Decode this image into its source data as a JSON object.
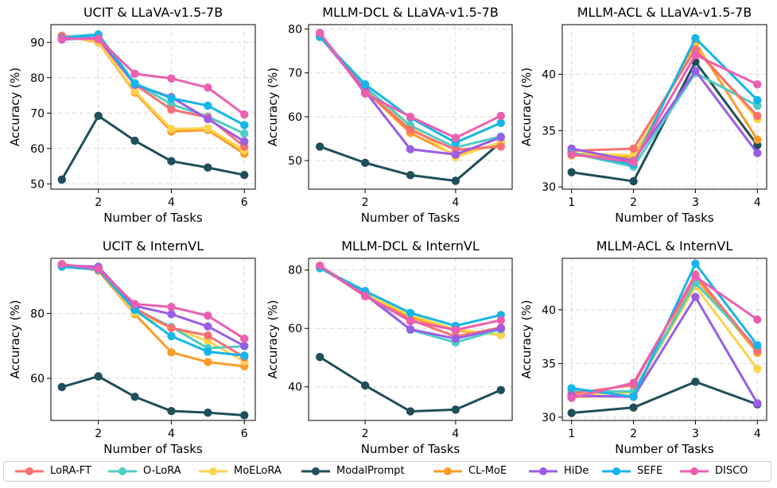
{
  "legend": {
    "items": [
      {
        "label": "LoRA-FT",
        "color": "#f87171"
      },
      {
        "label": "O-LoRA",
        "color": "#4ecdc4"
      },
      {
        "label": "MoELoRA",
        "color": "#fcd34d"
      },
      {
        "label": "ModalPrompt",
        "color": "#1f4f5a"
      },
      {
        "label": "CL-MoE",
        "color": "#fb9c28"
      },
      {
        "label": "HiDe",
        "color": "#9b5de5"
      },
      {
        "label": "SEFE",
        "color": "#16b5e8"
      },
      {
        "label": "DISCO",
        "color": "#ec5fb0"
      }
    ]
  },
  "chart_data": [
    {
      "type": "line",
      "title": "UCIT & LLaVA-v1.5-7B",
      "xlabel": "Number of Tasks",
      "ylabel": "Accuracy (%)",
      "xlim": [
        0.7,
        6.3
      ],
      "ylim": [
        48.5,
        95
      ],
      "xticks": [
        2,
        4,
        6
      ],
      "yticks": [
        50,
        60,
        70,
        80,
        90
      ],
      "x": [
        1,
        2,
        3,
        4,
        5,
        6
      ],
      "series": [
        {
          "name": "LoRA-FT",
          "values": [
            91.8,
            90.8,
            78.1,
            71.0,
            68.8,
            60.5
          ]
        },
        {
          "name": "O-LoRA",
          "values": [
            91.5,
            92.3,
            78.5,
            72.5,
            69.0,
            64.2
          ]
        },
        {
          "name": "MoELoRA",
          "values": [
            91.9,
            90.2,
            76.2,
            65.5,
            65.7,
            59.5
          ]
        },
        {
          "name": "ModalPrompt",
          "values": [
            51.2,
            69.2,
            62.2,
            56.4,
            54.6,
            52.5
          ]
        },
        {
          "name": "CL-MoE",
          "values": [
            91.9,
            90.0,
            75.8,
            64.8,
            65.2,
            58.5
          ]
        },
        {
          "name": "HiDe",
          "values": [
            90.8,
            91.3,
            78.0,
            74.5,
            68.3,
            62.0
          ]
        },
        {
          "name": "SEFE",
          "values": [
            91.2,
            92.1,
            78.3,
            74.2,
            72.1,
            66.6
          ]
        },
        {
          "name": "DISCO",
          "values": [
            91.0,
            91.0,
            81.1,
            79.8,
            77.2,
            69.6
          ]
        }
      ]
    },
    {
      "type": "line",
      "title": "MLLM-DCL & LLaVA-v1.5-7B",
      "xlabel": "Number of Tasks",
      "ylabel": "Accuracy (%)",
      "xlim": [
        0.75,
        5.25
      ],
      "ylim": [
        43.5,
        81
      ],
      "xticks": [
        2,
        4
      ],
      "yticks": [
        50,
        60,
        70,
        80
      ],
      "x": [
        1,
        2,
        3,
        4,
        5
      ],
      "series": [
        {
          "name": "LoRA-FT",
          "values": [
            79.0,
            66.0,
            57.0,
            52.5,
            53.2
          ]
        },
        {
          "name": "O-LoRA",
          "values": [
            78.2,
            66.8,
            58.0,
            53.0,
            55.5
          ]
        },
        {
          "name": "MoELoRA",
          "values": [
            78.7,
            66.5,
            57.8,
            50.8,
            54.2
          ]
        },
        {
          "name": "ModalPrompt",
          "values": [
            53.2,
            49.5,
            46.7,
            45.4,
            54.2
          ]
        },
        {
          "name": "CL-MoE",
          "values": [
            78.9,
            66.0,
            56.3,
            51.2,
            54.0
          ]
        },
        {
          "name": "HiDe",
          "values": [
            78.4,
            65.8,
            52.6,
            51.4,
            55.3
          ]
        },
        {
          "name": "SEFE",
          "values": [
            78.2,
            67.4,
            59.8,
            54.1,
            58.6
          ]
        },
        {
          "name": "DISCO",
          "values": [
            79.1,
            65.3,
            60.0,
            55.2,
            60.2
          ]
        }
      ]
    },
    {
      "type": "line",
      "title": "MLLM-ACL & LLaVA-v1.5-7B",
      "xlabel": "Number of Tasks",
      "ylabel": "Accuracy (%)",
      "xlim": [
        0.85,
        4.15
      ],
      "ylim": [
        29.8,
        44.4
      ],
      "xticks": [
        1,
        2,
        3,
        4
      ],
      "yticks": [
        30,
        35,
        40
      ],
      "x": [
        1,
        2,
        3,
        4
      ],
      "series": [
        {
          "name": "LoRA-FT",
          "values": [
            33.2,
            33.4,
            42.2,
            36.3
          ]
        },
        {
          "name": "O-LoRA",
          "values": [
            33.0,
            31.8,
            40.1,
            37.2
          ]
        },
        {
          "name": "MoELoRA",
          "values": [
            33.0,
            32.8,
            42.4,
            36.0
          ]
        },
        {
          "name": "ModalPrompt",
          "values": [
            31.3,
            30.5,
            41.1,
            33.7
          ]
        },
        {
          "name": "CL-MoE",
          "values": [
            32.8,
            32.6,
            42.8,
            34.2
          ]
        },
        {
          "name": "HiDe",
          "values": [
            33.4,
            32.3,
            40.3,
            33.0
          ]
        },
        {
          "name": "SEFE",
          "values": [
            33.0,
            32.0,
            43.2,
            37.7
          ]
        },
        {
          "name": "DISCO",
          "values": [
            32.9,
            32.2,
            41.7,
            39.1
          ]
        }
      ]
    },
    {
      "type": "line",
      "title": "UCIT & InternVL",
      "xlabel": "Number of Tasks",
      "ylabel": "Accuracy (%)",
      "xlim": [
        0.7,
        6.3
      ],
      "ylim": [
        47,
        97
      ],
      "xticks": [
        2,
        4,
        6
      ],
      "yticks": [
        60,
        80
      ],
      "x": [
        1,
        2,
        3,
        4,
        5,
        6
      ],
      "series": [
        {
          "name": "LoRA-FT",
          "values": [
            95.0,
            93.8,
            81.5,
            75.5,
            73.2,
            66.5
          ]
        },
        {
          "name": "O-LoRA",
          "values": [
            94.6,
            93.5,
            81.5,
            75.8,
            69.3,
            69.9
          ]
        },
        {
          "name": "MoELoRA",
          "values": [
            94.9,
            93.8,
            80.2,
            75.6,
            71.5,
            65.2
          ]
        },
        {
          "name": "ModalPrompt",
          "values": [
            57.3,
            60.6,
            54.3,
            49.9,
            49.4,
            48.6
          ]
        },
        {
          "name": "CL-MoE",
          "values": [
            95.1,
            93.2,
            79.8,
            68.0,
            65.0,
            63.7
          ]
        },
        {
          "name": "HiDe",
          "values": [
            94.8,
            94.4,
            82.3,
            79.8,
            76.0,
            70.0
          ]
        },
        {
          "name": "SEFE",
          "values": [
            94.4,
            93.5,
            81.1,
            73.0,
            68.2,
            67.0
          ]
        },
        {
          "name": "DISCO",
          "values": [
            95.2,
            93.7,
            82.9,
            82.0,
            79.3,
            72.2
          ]
        }
      ]
    },
    {
      "type": "line",
      "title": "MLLM-DCL & InternVL",
      "xlabel": "Number of Tasks",
      "ylabel": "Accuracy (%)",
      "xlim": [
        0.75,
        5.25
      ],
      "ylim": [
        28.5,
        84
      ],
      "xticks": [
        2,
        4
      ],
      "yticks": [
        40,
        60,
        80
      ],
      "x": [
        1,
        2,
        3,
        4,
        5
      ],
      "series": [
        {
          "name": "LoRA-FT",
          "values": [
            81.2,
            71.0,
            63.0,
            57.2,
            60.3
          ]
        },
        {
          "name": "O-LoRA",
          "values": [
            80.6,
            72.1,
            59.5,
            55.2,
            59.7
          ]
        },
        {
          "name": "MoELoRA",
          "values": [
            81.2,
            71.8,
            64.5,
            59.7,
            57.7
          ]
        },
        {
          "name": "ModalPrompt",
          "values": [
            50.2,
            40.5,
            31.6,
            32.2,
            38.9
          ]
        },
        {
          "name": "CL-MoE",
          "values": [
            81.3,
            72.0,
            63.8,
            59.2,
            57.8
          ]
        },
        {
          "name": "HiDe",
          "values": [
            81.0,
            71.5,
            59.7,
            56.5,
            60.0
          ]
        },
        {
          "name": "SEFE",
          "values": [
            80.8,
            72.8,
            65.3,
            60.9,
            64.6
          ]
        },
        {
          "name": "DISCO",
          "values": [
            81.5,
            71.2,
            62.5,
            59.5,
            62.8
          ]
        }
      ]
    },
    {
      "type": "line",
      "title": "MLLM-ACL & InternVL",
      "xlabel": "Number of Tasks",
      "ylabel": "Accuracy (%)",
      "xlim": [
        0.85,
        4.15
      ],
      "ylim": [
        29.7,
        44.8
      ],
      "xticks": [
        1,
        2,
        3,
        4
      ],
      "yticks": [
        30,
        35,
        40
      ],
      "x": [
        1,
        2,
        3,
        4
      ],
      "series": [
        {
          "name": "LoRA-FT",
          "values": [
            32.2,
            33.0,
            43.3,
            36.2
          ]
        },
        {
          "name": "O-LoRA",
          "values": [
            32.4,
            32.4,
            42.5,
            36.4
          ]
        },
        {
          "name": "MoELoRA",
          "values": [
            32.1,
            32.3,
            42.2,
            34.5
          ]
        },
        {
          "name": "ModalPrompt",
          "values": [
            30.4,
            30.9,
            33.3,
            31.2
          ]
        },
        {
          "name": "CL-MoE",
          "values": [
            31.9,
            32.0,
            43.0,
            36.0
          ]
        },
        {
          "name": "HiDe",
          "values": [
            32.0,
            31.9,
            41.2,
            31.3
          ]
        },
        {
          "name": "SEFE",
          "values": [
            32.7,
            31.9,
            44.3,
            36.7
          ]
        },
        {
          "name": "DISCO",
          "values": [
            31.8,
            33.2,
            43.1,
            39.1
          ]
        }
      ]
    }
  ]
}
